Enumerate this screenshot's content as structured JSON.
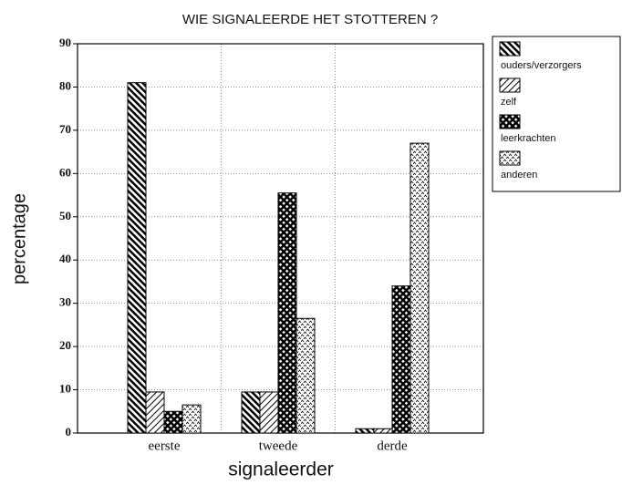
{
  "chart_data": {
    "type": "bar",
    "title": "WIE SIGNALEERDE HET STOTTEREN ?",
    "x_label": "signaleerder",
    "y_label": "percentage",
    "categories": [
      "eerste",
      "tweede",
      "derde"
    ],
    "series": [
      {
        "name": "ouders/verzorgers",
        "color": "#000000",
        "pattern": "dense-diagonal",
        "values": [
          81,
          9.5,
          1
        ]
      },
      {
        "name": "zelf",
        "color": "#000000",
        "pattern": "light-slash",
        "values": [
          9.5,
          9.5,
          1
        ]
      },
      {
        "name": "leerkrachten",
        "color": "#000000",
        "pattern": "crosshatch",
        "values": [
          5,
          55.5,
          34
        ]
      },
      {
        "name": "anderen",
        "color": "#000000",
        "pattern": "zigzag",
        "values": [
          6.5,
          26.5,
          67
        ]
      }
    ],
    "ylim": [
      0,
      90
    ],
    "yticks": [
      0,
      10,
      20,
      30,
      40,
      50,
      60,
      70,
      80,
      90
    ],
    "grid": true,
    "legend": "top-right"
  }
}
